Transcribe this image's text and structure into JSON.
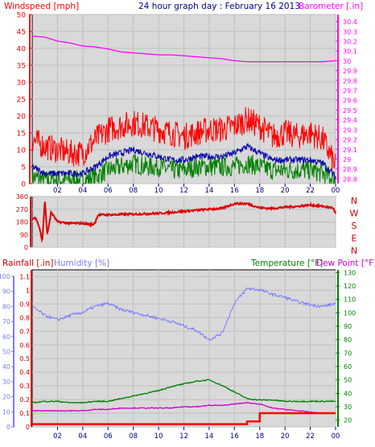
{
  "title": "24 hour graph day : February 16 2013",
  "colors": {
    "frame": "#000000",
    "plot_bg": "#d9d9d9",
    "grid": "#bfbfbf",
    "wind_gust": "#ff0000",
    "wind_avg": "#0000aa",
    "wind_min": "#008000",
    "barometer": "#ff00ff",
    "direction": "#dd0000",
    "rain_axis": "#cc0000",
    "humidity": "#7a7aff",
    "temperature": "#008000",
    "dewpoint": "#cc00cc",
    "rain": "#ff0000",
    "x_ticks": "#000080"
  },
  "x_tick_labels": [
    "02",
    "04",
    "06",
    "08",
    "10",
    "12",
    "14",
    "16",
    "18",
    "20",
    "22",
    "00"
  ],
  "chart_data": [
    {
      "type": "line",
      "title": "24 hour graph day : February 16 2013",
      "ylabel_left": "Windspeed [mph]",
      "ylabel_right": "Barometer [.in]",
      "left_ticks": [
        "0",
        "5",
        "10",
        "15",
        "20",
        "25",
        "30",
        "35",
        "40",
        "45",
        "50"
      ],
      "right_ticks": [
        "28.8",
        "28.9",
        "29",
        "29.1",
        "29.2",
        "29.3",
        "29.4",
        "29.5",
        "29.6",
        "29.7",
        "29.8",
        "29.9",
        "30",
        "30.1",
        "30.2",
        "30.3",
        "30.4"
      ],
      "ylim_left": [
        0,
        50
      ],
      "ylim_right": [
        28.75,
        30.47
      ],
      "grid": true,
      "x_hours": [
        0,
        1,
        2,
        3,
        4,
        5,
        6,
        7,
        8,
        9,
        10,
        11,
        12,
        13,
        14,
        15,
        16,
        17,
        18,
        19,
        20,
        21,
        22,
        23,
        24
      ],
      "series": [
        {
          "name": "Windspeed",
          "values": [
            13,
            11,
            10,
            9,
            9,
            13,
            16,
            17,
            18,
            17,
            16,
            15,
            14,
            15,
            16,
            16,
            17,
            19,
            17,
            14,
            15,
            14,
            15,
            13,
            5
          ]
        },
        {
          "name": "Barometer",
          "values": [
            30.25,
            30.24,
            30.2,
            30.18,
            30.15,
            30.14,
            30.12,
            30.09,
            30.08,
            30.07,
            30.06,
            30.06,
            30.05,
            30.04,
            30.03,
            30.02,
            30.0,
            29.99,
            29.99,
            29.99,
            29.99,
            29.99,
            29.99,
            29.99,
            30.0
          ]
        }
      ],
      "avg_values": [
        5,
        3,
        3,
        3,
        3,
        5,
        8,
        9,
        10,
        9,
        8,
        7,
        7,
        8,
        8,
        8,
        9,
        11,
        9,
        7,
        7,
        7,
        7,
        6,
        2
      ],
      "min_values": [
        2,
        1,
        1,
        1,
        1,
        2,
        4,
        5,
        6,
        5,
        5,
        4,
        4,
        5,
        5,
        5,
        5,
        6,
        5,
        4,
        4,
        4,
        4,
        3,
        1
      ]
    },
    {
      "type": "line",
      "title": "",
      "ylabel_left": "",
      "left_ticks": [
        "0",
        "90",
        "180",
        "270",
        "360"
      ],
      "right_labels": [
        "N",
        "W",
        "S",
        "E",
        "N"
      ],
      "ylim": [
        0,
        360
      ],
      "grid": true,
      "x_hours": [
        0,
        0.3,
        0.6,
        0.8,
        1.0,
        1.2,
        1.5,
        2,
        3,
        4,
        4.8,
        5,
        5.2,
        6,
        8,
        10,
        12,
        14,
        15,
        16,
        17,
        18,
        19,
        20,
        21,
        22,
        23,
        23.8,
        24
      ],
      "series": [
        {
          "name": "Wind Direction",
          "values": [
            200,
            210,
            130,
            40,
            330,
            90,
            250,
            180,
            170,
            170,
            160,
            180,
            230,
            230,
            235,
            240,
            255,
            270,
            275,
            310,
            310,
            280,
            275,
            285,
            290,
            300,
            290,
            280,
            240
          ]
        }
      ]
    },
    {
      "type": "line",
      "title": "",
      "ylabel_left": "Rainfall [.in]",
      "ylabel_left2": "Humidity [%]",
      "ylabel_right": "Temperature [°F]",
      "ylabel_right2": "Dew Point [°F]",
      "rain_ticks": [
        "0",
        "0.1",
        "0.2",
        "0.3",
        "0.4",
        "0.5",
        "0.6",
        "0.7",
        "0.8",
        "0.9",
        "1",
        "1.1"
      ],
      "humidity_ticks": [
        "0",
        "10",
        "20",
        "30",
        "40",
        "50",
        "60",
        "70",
        "80",
        "90",
        "100"
      ],
      "temp_ticks": [
        "20",
        "30",
        "40",
        "50",
        "60",
        "70",
        "80",
        "90",
        "100",
        "110",
        "120",
        "130"
      ],
      "ylim_rain": [
        0,
        1.15
      ],
      "ylim_humidity": [
        0,
        100
      ],
      "ylim_temp": [
        15,
        132
      ],
      "grid": true,
      "x_hours": [
        0,
        1,
        2,
        3,
        4,
        5,
        6,
        7,
        8,
        9,
        10,
        11,
        12,
        13,
        14,
        15,
        16,
        17,
        18,
        19,
        20,
        21,
        22,
        23,
        24
      ],
      "series": [
        {
          "name": "Humidity",
          "values": [
            80,
            74,
            71,
            74,
            76,
            80,
            82,
            78,
            76,
            74,
            72,
            70,
            67,
            64,
            58,
            62,
            82,
            92,
            91,
            88,
            86,
            83,
            81,
            80,
            82
          ]
        },
        {
          "name": "Temperature",
          "values": [
            33,
            34,
            34,
            33,
            33,
            34,
            34,
            36,
            38,
            40,
            42,
            45,
            47,
            49,
            50,
            46,
            41,
            36,
            35,
            35,
            34,
            34,
            34,
            34,
            34
          ]
        },
        {
          "name": "Dew Point",
          "values": [
            27,
            27,
            27,
            27,
            27,
            28,
            28,
            29,
            29,
            29,
            29,
            29,
            30,
            30,
            31,
            31,
            32,
            33,
            32,
            29,
            28,
            27,
            26,
            25,
            25
          ]
        },
        {
          "name": "Rainfall",
          "values": [
            0.02,
            0.02,
            0.02,
            0.02,
            0.02,
            0.02,
            0.02,
            0.02,
            0.02,
            0.02,
            0.02,
            0.02,
            0.02,
            0.02,
            0.02,
            0.02,
            0.02,
            0.04,
            0.1,
            0.1,
            0.1,
            0.1,
            0.1,
            0.1,
            0.1
          ]
        }
      ]
    }
  ]
}
